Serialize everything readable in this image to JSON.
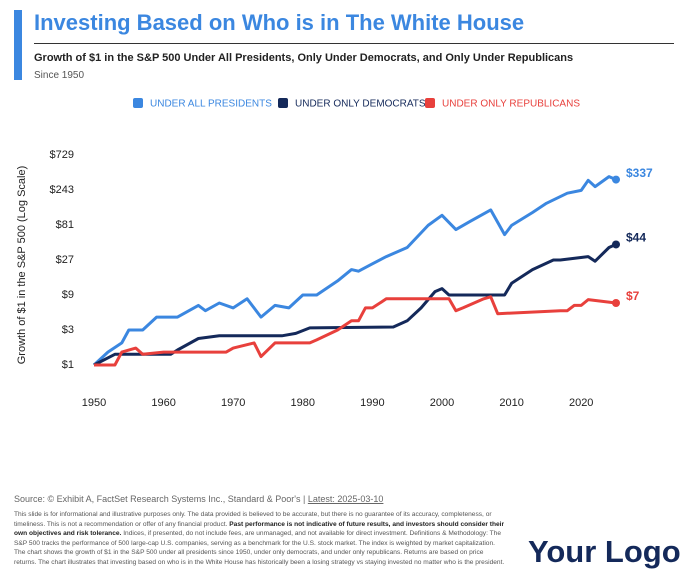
{
  "header": {
    "title": "Investing Based on Who is in The White House",
    "subtitle": "Growth of $1 in the S&P 500 Under All Presidents, Only Under Democrats, and Only Under Republicans",
    "note": "Since 1950"
  },
  "chart_data": {
    "type": "line",
    "log_scale": true,
    "grid": false,
    "legend": "top",
    "y_label": "Growth of $1 in the S&P 500 (Log Scale)",
    "xlim": [
      1950,
      2025
    ],
    "xticks": [
      1950,
      1960,
      1970,
      1980,
      1990,
      2000,
      2010,
      2020
    ],
    "ylim": [
      1,
      729
    ],
    "yticks": [
      {
        "value": 1,
        "label": "$1"
      },
      {
        "value": 3,
        "label": "$3"
      },
      {
        "value": 9,
        "label": "$9"
      },
      {
        "value": 27,
        "label": "$27"
      },
      {
        "value": 81,
        "label": "$81"
      },
      {
        "value": 243,
        "label": "$243"
      },
      {
        "value": 729,
        "label": "$729"
      }
    ],
    "series": [
      {
        "name": "UNDER ALL PRESIDENTS",
        "color": "#3b87e0",
        "end_label": "$337",
        "x": [
          1950,
          1952,
          1954,
          1955,
          1957,
          1959,
          1962,
          1965,
          1966,
          1968,
          1970,
          1972,
          1974,
          1976,
          1978,
          1980,
          1982,
          1985,
          1987,
          1988,
          1990,
          1992,
          1995,
          1998,
          2000,
          2002,
          2004,
          2007,
          2009,
          2010,
          2013,
          2015,
          2018,
          2020,
          2021,
          2022,
          2024,
          2025
        ],
        "values": [
          1,
          1.5,
          2,
          3,
          3,
          4.5,
          4.5,
          6.5,
          5.5,
          7,
          6,
          8,
          4.5,
          6.5,
          6,
          9,
          9,
          14,
          20,
          19,
          24,
          30,
          40,
          80,
          110,
          70,
          90,
          130,
          60,
          80,
          120,
          160,
          220,
          240,
          330,
          270,
          370,
          337
        ]
      },
      {
        "name": "UNDER ONLY DEMOCRATS",
        "color": "#14295a",
        "end_label": "$44",
        "x": [
          1950,
          1953,
          1961,
          1962,
          1965,
          1968,
          1969,
          1977,
          1979,
          1981,
          1993,
          1995,
          1997,
          1999,
          2000,
          2001,
          2009,
          2010,
          2013,
          2016,
          2017,
          2021,
          2022,
          2024,
          2025
        ],
        "values": [
          1,
          1.4,
          1.4,
          1.6,
          2.3,
          2.5,
          2.5,
          2.5,
          2.7,
          3.2,
          3.3,
          4,
          6,
          10,
          11,
          9,
          9,
          13,
          20,
          27,
          27,
          30,
          26,
          40,
          44
        ]
      },
      {
        "name": "UNDER ONLY REPUBLICANS",
        "color": "#e8403c",
        "end_label": "$7",
        "x": [
          1950,
          1953,
          1954,
          1956,
          1957,
          1960,
          1969,
          1970,
          1973,
          1974,
          1976,
          1977,
          1981,
          1982,
          1985,
          1987,
          1988,
          1989,
          1990,
          1992,
          2001,
          2002,
          2003,
          2006,
          2007,
          2008,
          2017,
          2018,
          2019,
          2020,
          2021,
          2025
        ],
        "values": [
          1,
          1,
          1.5,
          1.7,
          1.4,
          1.5,
          1.5,
          1.7,
          2,
          1.3,
          2,
          2,
          2,
          2.2,
          3,
          4,
          4,
          6,
          6,
          8,
          8,
          5.5,
          6,
          8,
          8.5,
          5,
          5.5,
          5.5,
          6.5,
          6.5,
          7.8,
          7
        ]
      }
    ]
  },
  "footer": {
    "source": "Source: © Exhibit A, FactSet Research Systems Inc., Standard & Poor's |",
    "source_date": "Latest: 2025-03-10",
    "disclaimer": [
      {
        "text": "This slide is for informational and illustrative purposes only. The data provided is believed to be accurate, but there is no guarantee of its accuracy, completeness, or timeliness. This is not a recommendation or offer of any financial product. ",
        "bold": false
      },
      {
        "text": "Past performance is not indicative of future results, and investors should consider their own objectives and risk tolerance.",
        "bold": true
      },
      {
        "text": " Indices, if presented, do not include fees, are unmanaged, and not available for direct investment. Definitions & Methodology: The S&P 500 tracks the performance of 500 large-cap U.S. companies, serving as a benchmark for the U.S. stock market. The index is weighted by market capitalization. The chart shows the growth of $1 in the S&P 500 under all presidents since 1950, under only democrats, and under only republicans. Returns are based on price returns. The chart illustrates that investing based on who is in the White House has historically been a losing strategy vs staying invested no matter who is the president.",
        "bold": false
      }
    ],
    "logo": "Your Logo"
  }
}
